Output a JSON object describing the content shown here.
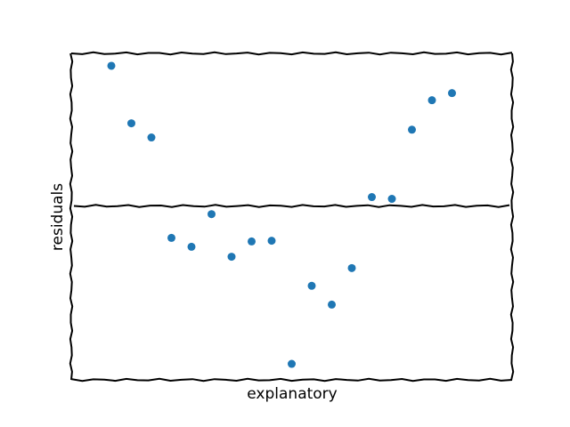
{
  "chart_data": {
    "type": "scatter",
    "x_label": "explanatory",
    "y_label": "residuals",
    "x": [
      1,
      2,
      3,
      4,
      5,
      6,
      7,
      8,
      9,
      10,
      11,
      12,
      13,
      14,
      15,
      16,
      17,
      18
    ],
    "y": [
      3.95,
      2.33,
      1.93,
      -0.9,
      -1.15,
      -0.23,
      -1.43,
      -1.0,
      -0.98,
      -4.45,
      -2.25,
      -2.78,
      -1.75,
      0.25,
      0.2,
      2.15,
      2.98,
      3.18
    ],
    "color": "#1f77b4",
    "xlim": [
      -1,
      21
    ],
    "ylim": [
      -4.9,
      4.3
    ],
    "hline": 0
  }
}
